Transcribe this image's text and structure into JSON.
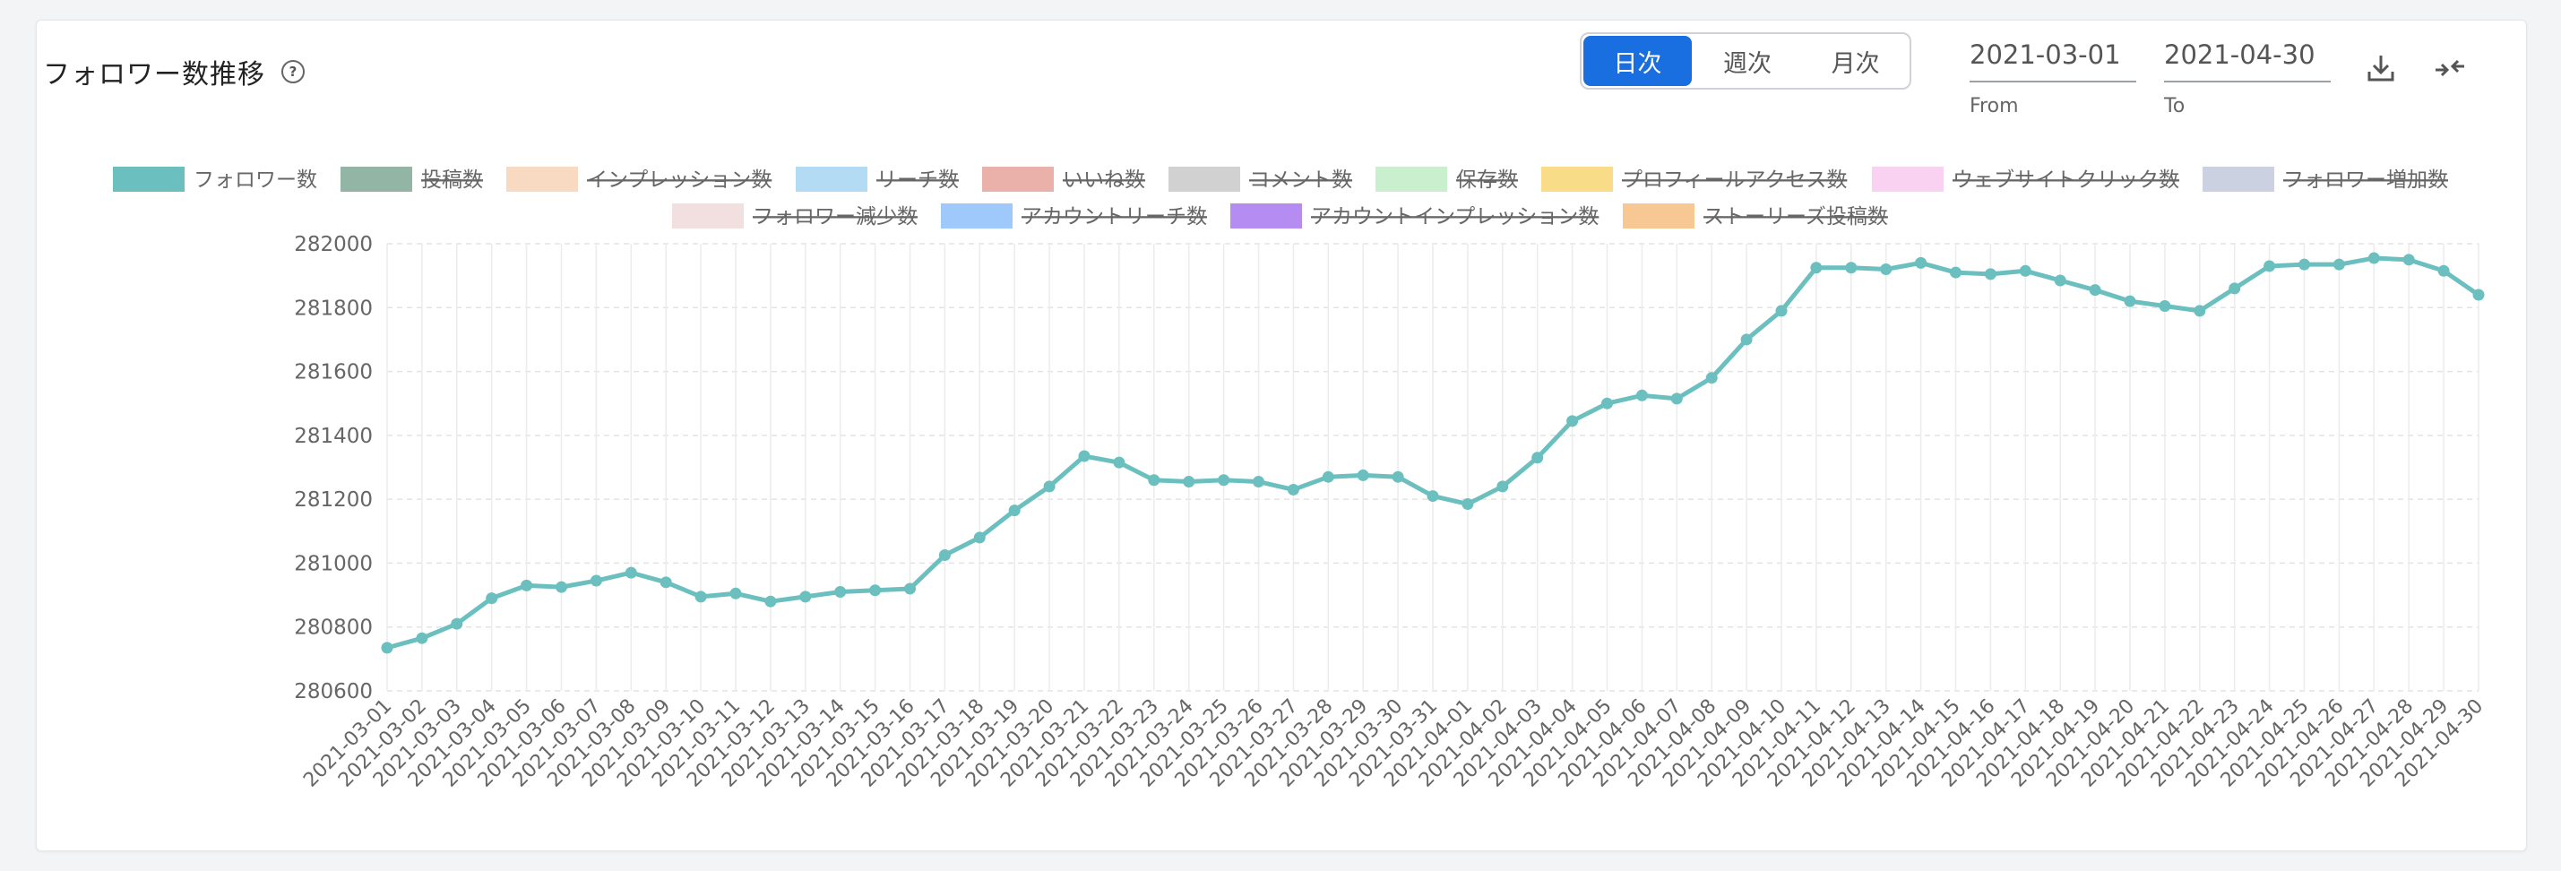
{
  "header": {
    "title": "フォロワー数推移",
    "help_icon": "question-circle-icon",
    "periods": [
      "日次",
      "週次",
      "月次"
    ],
    "active_period": "日次",
    "from_value": "2021-03-01",
    "from_label": "From",
    "to_value": "2021-04-30",
    "to_label": "To",
    "download_icon": "download-icon",
    "collapse_icon": "collapse-arrows-icon"
  },
  "colors": {
    "accent": "#1a6fe0",
    "line": "#6bbfbf"
  },
  "chart_data": {
    "type": "line",
    "legend": [
      {
        "name": "フォロワー数",
        "color": "#6bbfbf",
        "active": true
      },
      {
        "name": "投稿数",
        "color": "#93b5a5",
        "active": false
      },
      {
        "name": "インプレッション数",
        "color": "#f8d9c2",
        "active": false
      },
      {
        "name": "リーチ数",
        "color": "#b4dbf4",
        "active": false
      },
      {
        "name": "いいね数",
        "color": "#eab0aa",
        "active": false
      },
      {
        "name": "コメント数",
        "color": "#d1d1d1",
        "active": false
      },
      {
        "name": "保存数",
        "color": "#c9efce",
        "active": false
      },
      {
        "name": "プロフィールアクセス数",
        "color": "#f9dc88",
        "active": false
      },
      {
        "name": "ウェブサイトクリック数",
        "color": "#f9d1f1",
        "active": false
      },
      {
        "name": "フォロワー増加数",
        "color": "#ccd1e2",
        "active": false
      },
      {
        "name": "フォロワー減少数",
        "color": "#f2dfdf",
        "active": false
      },
      {
        "name": "アカウントリーチ数",
        "color": "#9fc9fb",
        "active": false
      },
      {
        "name": "アカウントインプレッション数",
        "color": "#b48cf2",
        "active": false
      },
      {
        "name": "ストーリーズ投稿数",
        "color": "#f8c894",
        "active": false
      }
    ],
    "x": [
      "2021-03-01",
      "2021-03-02",
      "2021-03-03",
      "2021-03-04",
      "2021-03-05",
      "2021-03-06",
      "2021-03-07",
      "2021-03-08",
      "2021-03-09",
      "2021-03-10",
      "2021-03-11",
      "2021-03-12",
      "2021-03-13",
      "2021-03-14",
      "2021-03-15",
      "2021-03-16",
      "2021-03-17",
      "2021-03-18",
      "2021-03-19",
      "2021-03-20",
      "2021-03-21",
      "2021-03-22",
      "2021-03-23",
      "2021-03-24",
      "2021-03-25",
      "2021-03-26",
      "2021-03-27",
      "2021-03-28",
      "2021-03-29",
      "2021-03-30",
      "2021-03-31",
      "2021-04-01",
      "2021-04-02",
      "2021-04-03",
      "2021-04-04",
      "2021-04-05",
      "2021-04-06",
      "2021-04-07",
      "2021-04-08",
      "2021-04-09",
      "2021-04-10",
      "2021-04-11",
      "2021-04-12",
      "2021-04-13",
      "2021-04-14",
      "2021-04-15",
      "2021-04-16",
      "2021-04-17",
      "2021-04-18",
      "2021-04-19",
      "2021-04-20",
      "2021-04-21",
      "2021-04-22",
      "2021-04-23",
      "2021-04-24",
      "2021-04-25",
      "2021-04-26",
      "2021-04-27",
      "2021-04-28",
      "2021-04-29",
      "2021-04-30"
    ],
    "series": [
      {
        "name": "フォロワー数",
        "values": [
          280735,
          280765,
          280810,
          280890,
          280930,
          280925,
          280945,
          280970,
          280940,
          280895,
          280905,
          280880,
          280895,
          280910,
          280915,
          280920,
          281025,
          281080,
          281165,
          281240,
          281335,
          281315,
          281260,
          281255,
          281260,
          281255,
          281230,
          281270,
          281275,
          281270,
          281210,
          281185,
          281240,
          281330,
          281445,
          281500,
          281525,
          281515,
          281580,
          281700,
          281790,
          281925,
          281925,
          281920,
          281940,
          281910,
          281905,
          281915,
          281885,
          281855,
          281820,
          281805,
          281790,
          281860,
          281930,
          281935,
          281935,
          281955,
          281950,
          281915,
          281840
        ]
      }
    ],
    "yticks": [
      280600,
      280800,
      281000,
      281200,
      281400,
      281600,
      281800,
      282000
    ],
    "ylim": [
      280600,
      282000
    ],
    "grid": true,
    "legend_position": "top"
  }
}
